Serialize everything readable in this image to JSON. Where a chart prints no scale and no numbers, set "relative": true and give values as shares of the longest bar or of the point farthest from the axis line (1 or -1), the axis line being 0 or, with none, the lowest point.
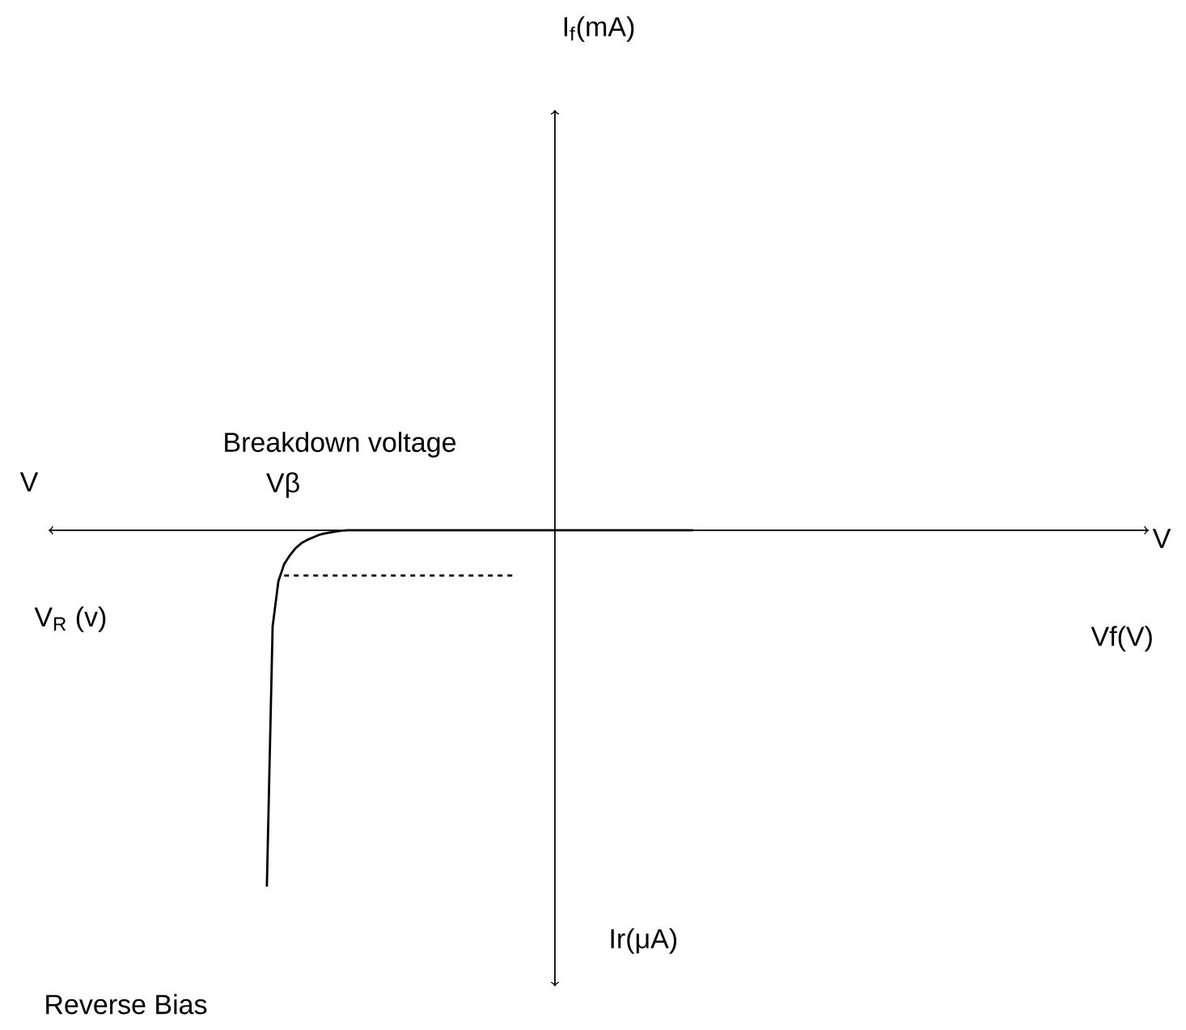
{
  "chart_data": {
    "type": "line",
    "relative": true,
    "line_style": "solid",
    "categories": [
      null,
      null,
      null,
      null,
      null,
      null,
      null,
      null,
      null,
      null,
      null,
      null,
      null,
      null,
      null,
      null,
      null,
      null,
      null,
      null,
      null,
      null,
      null,
      null,
      null,
      null,
      null,
      null,
      null,
      null,
      null,
      null,
      null,
      null,
      null,
      null,
      null,
      null,
      null,
      null,
      null,
      null,
      null,
      null,
      null,
      null,
      null,
      null,
      null,
      null,
      null,
      null,
      null,
      null,
      null,
      null,
      null,
      null,
      null,
      null,
      null,
      null,
      null,
      null,
      null,
      null,
      null,
      null,
      null,
      null,
      null,
      null,
      null,
      null,
      null
    ],
    "series": [
      {
        "color": "#000000",
        "values": [
          -1,
          -0.27,
          -0.143,
          -0.095,
          -0.07,
          -0.05,
          -0.036,
          -0.027,
          -0.02,
          -0.013,
          -0.009,
          -0.006,
          -0.003,
          -0.001,
          0,
          0,
          0,
          0,
          0,
          0,
          0,
          0,
          0,
          0,
          0,
          0,
          0,
          0,
          0,
          0,
          0,
          0,
          0,
          0,
          0,
          0,
          0,
          0,
          0,
          0,
          0,
          0,
          0,
          0,
          0,
          0,
          0,
          0,
          0,
          0,
          0,
          0,
          0,
          0,
          0,
          0,
          0,
          0,
          0,
          0,
          0,
          0,
          0,
          0,
          0,
          0,
          0,
          0,
          0,
          0,
          0,
          0,
          0,
          0,
          0
        ]
      },
      {
        "color": "#000000",
        "line_style": "dashed",
        "values": [
          null,
          null,
          null,
          -0.127,
          -0.127,
          -0.127,
          -0.127,
          -0.127,
          -0.127,
          -0.127,
          -0.127,
          -0.127,
          -0.127,
          -0.127,
          -0.127,
          -0.127,
          -0.127,
          -0.127,
          -0.127,
          -0.127,
          -0.127,
          -0.127,
          -0.127,
          -0.127,
          -0.127,
          -0.127,
          -0.127,
          -0.127,
          -0.127,
          -0.127,
          -0.127,
          -0.127,
          -0.127,
          -0.127,
          -0.127,
          -0.127,
          -0.127,
          -0.127,
          -0.127,
          -0.127,
          -0.127,
          -0.127,
          -0.127,
          -0.127,
          null,
          null,
          null,
          null,
          null,
          null,
          null,
          null,
          null,
          null,
          null,
          null,
          null,
          null,
          null,
          null,
          null,
          null,
          null,
          null,
          null,
          null,
          null,
          null,
          null,
          null,
          null,
          null,
          null,
          null,
          null
        ]
      }
    ],
    "annotations": [
      "Breakdown voltage",
      "Vβ",
      "V",
      "V",
      "V$_{R}$ (v)",
      "Ir(μA)",
      "Reverse Bias",
      "I$_{f}$(mA)",
      "Vf(V)"
    ]
  }
}
